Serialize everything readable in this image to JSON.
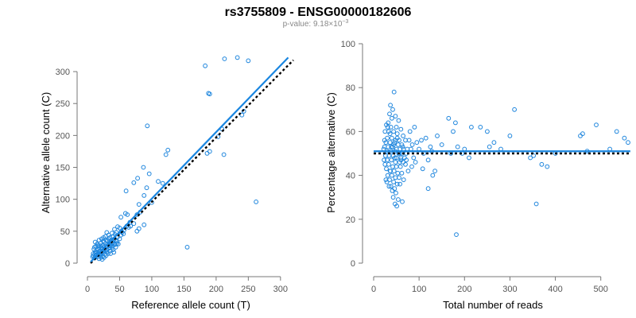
{
  "figure": {
    "title": "rs3755809 - ENSG00000182606",
    "subtitle_prefix": "p-value: 9.18×10",
    "subtitle_exp": "−3"
  },
  "colors": {
    "points": "#1f86dd",
    "fit": "#1a86e0",
    "reference": "#000000",
    "axis": "#777777"
  },
  "chart_data": [
    {
      "type": "scatter",
      "xlabel": "Reference allele count (T)",
      "ylabel": "Alternative allele count (C)",
      "xlim": [
        0,
        320
      ],
      "ylim": [
        0,
        320
      ],
      "xticks": [
        0,
        50,
        100,
        150,
        200,
        250,
        300
      ],
      "yticks": [
        0,
        50,
        100,
        150,
        200,
        250,
        300
      ],
      "grid": false,
      "fit_line": {
        "x": [
          5,
          312
        ],
        "y": [
          2,
          322
        ]
      },
      "reference_line": {
        "x": [
          5,
          320
        ],
        "y": [
          0,
          318
        ],
        "style": "dotted"
      },
      "points": [
        [
          233,
          322
        ],
        [
          213,
          320
        ],
        [
          250,
          317
        ],
        [
          183,
          309
        ],
        [
          188,
          266
        ],
        [
          190,
          265
        ],
        [
          243,
          238
        ],
        [
          240,
          232
        ],
        [
          209,
          210
        ],
        [
          203,
          198
        ],
        [
          93,
          215
        ],
        [
          122,
          170
        ],
        [
          125,
          177
        ],
        [
          212,
          170
        ],
        [
          190,
          175
        ],
        [
          186,
          172
        ],
        [
          78,
          133
        ],
        [
          87,
          150
        ],
        [
          96,
          140
        ],
        [
          72,
          126
        ],
        [
          92,
          118
        ],
        [
          110,
          128
        ],
        [
          117,
          125
        ],
        [
          60,
          113
        ],
        [
          88,
          106
        ],
        [
          100,
          95
        ],
        [
          80,
          92
        ],
        [
          82,
          80
        ],
        [
          77,
          76
        ],
        [
          59,
          78
        ],
        [
          62,
          76
        ],
        [
          52,
          72
        ],
        [
          66,
          64
        ],
        [
          72,
          62
        ],
        [
          67,
          58
        ],
        [
          80,
          54
        ],
        [
          77,
          50
        ],
        [
          88,
          60
        ],
        [
          262,
          96
        ],
        [
          155,
          25
        ],
        [
          47,
          57
        ],
        [
          50,
          55
        ],
        [
          42,
          53
        ],
        [
          45,
          48
        ],
        [
          53,
          50
        ],
        [
          38,
          47
        ],
        [
          30,
          48
        ],
        [
          33,
          44
        ],
        [
          28,
          42
        ],
        [
          40,
          42
        ],
        [
          35,
          40
        ],
        [
          22,
          38
        ],
        [
          18,
          36
        ],
        [
          25,
          35
        ],
        [
          31,
          35
        ],
        [
          37,
          36
        ],
        [
          42,
          38
        ],
        [
          12,
          33
        ],
        [
          15,
          30
        ],
        [
          20,
          31
        ],
        [
          28,
          30
        ],
        [
          34,
          31
        ],
        [
          40,
          32
        ],
        [
          46,
          34
        ],
        [
          50,
          38
        ],
        [
          24,
          28
        ],
        [
          30,
          27
        ],
        [
          36,
          27
        ],
        [
          43,
          29
        ],
        [
          13,
          26
        ],
        [
          18,
          25
        ],
        [
          22,
          24
        ],
        [
          27,
          22
        ],
        [
          33,
          23
        ],
        [
          38,
          24
        ],
        [
          10,
          22
        ],
        [
          15,
          20
        ],
        [
          20,
          19
        ],
        [
          25,
          18
        ],
        [
          30,
          18
        ],
        [
          35,
          19
        ],
        [
          40,
          21
        ],
        [
          12,
          17
        ],
        [
          17,
          16
        ],
        [
          22,
          15
        ],
        [
          27,
          14
        ],
        [
          32,
          15
        ],
        [
          14,
          13
        ],
        [
          19,
          12
        ],
        [
          24,
          11
        ],
        [
          29,
          12
        ],
        [
          9,
          12
        ],
        [
          16,
          10
        ],
        [
          21,
          9
        ],
        [
          26,
          9
        ],
        [
          11,
          8
        ],
        [
          18,
          7
        ],
        [
          23,
          6
        ],
        [
          8,
          10
        ],
        [
          13,
          15
        ],
        [
          28,
          20
        ],
        [
          44,
          25
        ],
        [
          48,
          30
        ],
        [
          52,
          44
        ],
        [
          56,
          46
        ],
        [
          36,
          15
        ],
        [
          41,
          17
        ],
        [
          19,
          18
        ],
        [
          23,
          21
        ],
        [
          26,
          25
        ],
        [
          31,
          26
        ],
        [
          37,
          31
        ],
        [
          44,
          36
        ],
        [
          47,
          41
        ],
        [
          33,
          38
        ],
        [
          26,
          33
        ],
        [
          21,
          27
        ],
        [
          16,
          22
        ],
        [
          14,
          18
        ],
        [
          20,
          14
        ],
        [
          30,
          21
        ],
        [
          35,
          24
        ],
        [
          39,
          27
        ],
        [
          43,
          45
        ],
        [
          54,
          48
        ],
        [
          57,
          52
        ],
        [
          61,
          58
        ],
        [
          64,
          56
        ],
        [
          25,
          40
        ],
        [
          29,
          36
        ],
        [
          18,
          28
        ],
        [
          11,
          25
        ],
        [
          16,
          27
        ],
        [
          9,
          15
        ],
        [
          12,
          11
        ],
        [
          17,
          13
        ],
        [
          22,
          17
        ],
        [
          34,
          28
        ],
        [
          38,
          33
        ],
        [
          42,
          30
        ],
        [
          46,
          31
        ]
      ]
    },
    {
      "type": "scatter",
      "xlabel": "Total number of reads",
      "ylabel": "Percentage alternative (C)",
      "xlim": [
        0,
        560
      ],
      "ylim": [
        0,
        100
      ],
      "xticks": [
        0,
        100,
        200,
        300,
        400,
        500
      ],
      "yticks": [
        0,
        20,
        40,
        60,
        80,
        100
      ],
      "grid": false,
      "fit_line": {
        "x": [
          0,
          565
        ],
        "y": [
          51,
          51
        ]
      },
      "reference_line": {
        "x": [
          0,
          565
        ],
        "y": [
          50,
          50
        ],
        "style": "dotted"
      },
      "points": [
        [
          45,
          78
        ],
        [
          37,
          72
        ],
        [
          42,
          70
        ],
        [
          35,
          68
        ],
        [
          48,
          67
        ],
        [
          32,
          64
        ],
        [
          40,
          66
        ],
        [
          55,
          65
        ],
        [
          28,
          63
        ],
        [
          38,
          62
        ],
        [
          50,
          62
        ],
        [
          60,
          61
        ],
        [
          25,
          60
        ],
        [
          33,
          60
        ],
        [
          44,
          60
        ],
        [
          52,
          59
        ],
        [
          65,
          58
        ],
        [
          30,
          57
        ],
        [
          40,
          57
        ],
        [
          48,
          56
        ],
        [
          56,
          56
        ],
        [
          70,
          56
        ],
        [
          78,
          56
        ],
        [
          27,
          55
        ],
        [
          36,
          55
        ],
        [
          46,
          55
        ],
        [
          54,
          54
        ],
        [
          62,
          54
        ],
        [
          24,
          53
        ],
        [
          32,
          53
        ],
        [
          42,
          53
        ],
        [
          50,
          52
        ],
        [
          58,
          52
        ],
        [
          66,
          52
        ],
        [
          74,
          52
        ],
        [
          82,
          52
        ],
        [
          29,
          51
        ],
        [
          38,
          51
        ],
        [
          47,
          51
        ],
        [
          55,
          50
        ],
        [
          63,
          50
        ],
        [
          72,
          50
        ],
        [
          26,
          49
        ],
        [
          34,
          49
        ],
        [
          43,
          49
        ],
        [
          51,
          48
        ],
        [
          60,
          48
        ],
        [
          68,
          48
        ],
        [
          30,
          47
        ],
        [
          39,
          47
        ],
        [
          48,
          46
        ],
        [
          57,
          46
        ],
        [
          65,
          46
        ],
        [
          25,
          45
        ],
        [
          33,
          45
        ],
        [
          42,
          44
        ],
        [
          50,
          44
        ],
        [
          59,
          44
        ],
        [
          28,
          43
        ],
        [
          36,
          42
        ],
        [
          45,
          42
        ],
        [
          53,
          41
        ],
        [
          62,
          41
        ],
        [
          31,
          40
        ],
        [
          40,
          40
        ],
        [
          48,
          39
        ],
        [
          56,
          39
        ],
        [
          27,
          38
        ],
        [
          35,
          38
        ],
        [
          44,
          37
        ],
        [
          52,
          36
        ],
        [
          38,
          35
        ],
        [
          46,
          34
        ],
        [
          41,
          33
        ],
        [
          49,
          32
        ],
        [
          43,
          30
        ],
        [
          54,
          29
        ],
        [
          47,
          27
        ],
        [
          51,
          26
        ],
        [
          63,
          28
        ],
        [
          34,
          35
        ],
        [
          29,
          37
        ],
        [
          37,
          42
        ],
        [
          23,
          47
        ],
        [
          22,
          52
        ],
        [
          80,
          60
        ],
        [
          90,
          62
        ],
        [
          85,
          54
        ],
        [
          95,
          55
        ],
        [
          100,
          52
        ],
        [
          88,
          48
        ],
        [
          105,
          56
        ],
        [
          110,
          50
        ],
        [
          120,
          47
        ],
        [
          125,
          53
        ],
        [
          130,
          40
        ],
        [
          135,
          42
        ],
        [
          140,
          58
        ],
        [
          150,
          54
        ],
        [
          120,
          34
        ],
        [
          165,
          66
        ],
        [
          180,
          64
        ],
        [
          175,
          60
        ],
        [
          185,
          53
        ],
        [
          195,
          50
        ],
        [
          200,
          52
        ],
        [
          215,
          62
        ],
        [
          235,
          62
        ],
        [
          250,
          60
        ],
        [
          210,
          48
        ],
        [
          170,
          50
        ],
        [
          182,
          13
        ],
        [
          255,
          53
        ],
        [
          265,
          55
        ],
        [
          280,
          52
        ],
        [
          300,
          58
        ],
        [
          310,
          70
        ],
        [
          345,
          48
        ],
        [
          352,
          49
        ],
        [
          358,
          27
        ],
        [
          370,
          45
        ],
        [
          382,
          44
        ],
        [
          400,
          50
        ],
        [
          455,
          58
        ],
        [
          460,
          59
        ],
        [
          470,
          51
        ],
        [
          490,
          63
        ],
        [
          520,
          52
        ],
        [
          535,
          60
        ],
        [
          552,
          57
        ],
        [
          560,
          55
        ],
        [
          60,
          47
        ],
        [
          70,
          45
        ],
        [
          76,
          42
        ],
        [
          58,
          36
        ],
        [
          66,
          38
        ],
        [
          44,
          54
        ],
        [
          52,
          57
        ],
        [
          36,
          59
        ],
        [
          24,
          56
        ],
        [
          31,
          62
        ],
        [
          47,
          48
        ],
        [
          39,
          53
        ],
        [
          57,
          50
        ],
        [
          64,
          53
        ],
        [
          72,
          47
        ],
        [
          84,
          44
        ],
        [
          92,
          46
        ],
        [
          108,
          43
        ],
        [
          115,
          57
        ],
        [
          128,
          51
        ]
      ]
    }
  ]
}
